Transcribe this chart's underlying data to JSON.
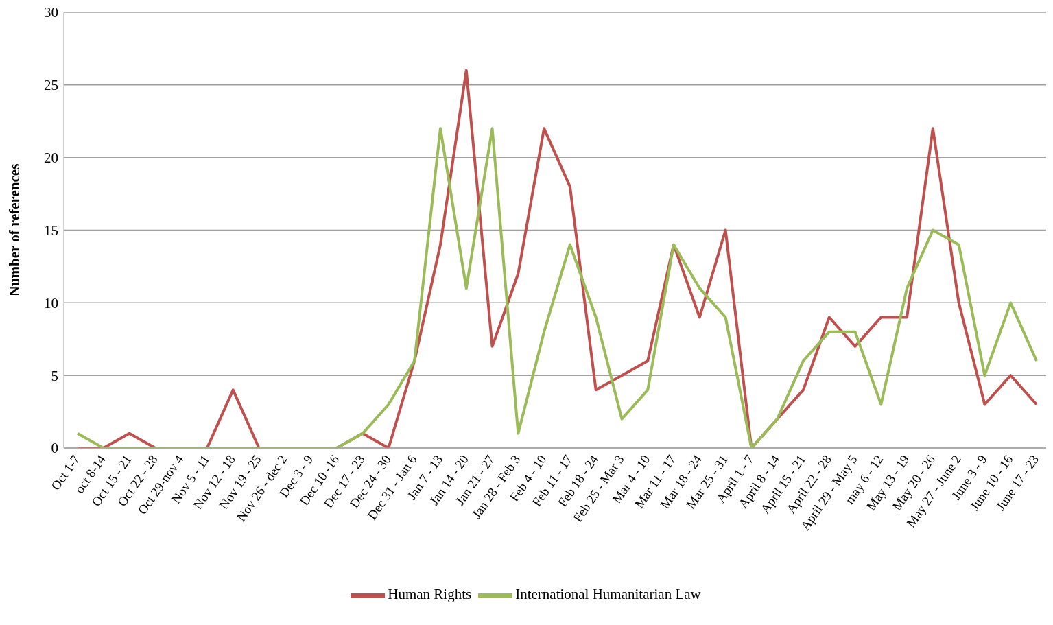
{
  "chart_data": {
    "type": "line",
    "ylabel": "Number of references",
    "categories": [
      "Oct 1-7",
      "oct 8-14",
      "Oct 15 - 21",
      "Oct 22 - 28",
      "Oct 29-nov 4",
      "Nov 5 - 11",
      "Nov 12 - 18",
      "Nov 19 - 25",
      "Nov 26 - dec 2",
      "Dec 3 - 9",
      "Dec 10 -16",
      "Dec 17 - 23",
      "Dec 24 - 30",
      "Dec 31 - Jan 6",
      "Jan 7 - 13",
      "Jan 14 - 20",
      "Jan 21 - 27",
      "Jan 28 - Feb 3",
      "Feb 4 - 10",
      "Feb 11 - 17",
      "Feb 18 - 24",
      "Feb 25 - Mar 3",
      "Mar 4 - 10",
      "Mar 11 - 17",
      "Mar 18 - 24",
      "Mar 25 - 31",
      "April 1 - 7",
      "April 8 - 14",
      "April 15 - 21",
      "April 22 - 28",
      "April 29 - May 5",
      "may 6 - 12",
      "May 13 - 19",
      "May 20 - 26",
      "May 27 - June 2",
      "June 3 - 9",
      "June 10 - 16",
      "June 17 - 23"
    ],
    "series": [
      {
        "name": "Human Rights",
        "color": "#c0504d",
        "values": [
          0,
          0,
          1,
          0,
          0,
          0,
          4,
          0,
          0,
          0,
          0,
          1,
          0,
          6,
          14,
          26,
          7,
          12,
          22,
          18,
          4,
          5,
          6,
          14,
          9,
          15,
          0,
          2,
          4,
          9,
          7,
          9,
          9,
          22,
          10,
          3,
          5,
          3
        ]
      },
      {
        "name": "International Humanitarian Law",
        "color": "#9bbb59",
        "values": [
          1,
          0,
          0,
          0,
          0,
          0,
          0,
          0,
          0,
          0,
          0,
          1,
          3,
          6,
          22,
          11,
          22,
          1,
          8,
          14,
          9,
          2,
          4,
          14,
          11,
          9,
          0,
          2,
          6,
          8,
          8,
          3,
          11,
          15,
          14,
          5,
          10,
          6
        ]
      }
    ],
    "ylim": [
      0,
      30
    ],
    "yticks": [
      0,
      5,
      10,
      15,
      20,
      25,
      30
    ],
    "grid": "y",
    "legend": "bottom",
    "marker": "none",
    "line_style": "solid"
  }
}
